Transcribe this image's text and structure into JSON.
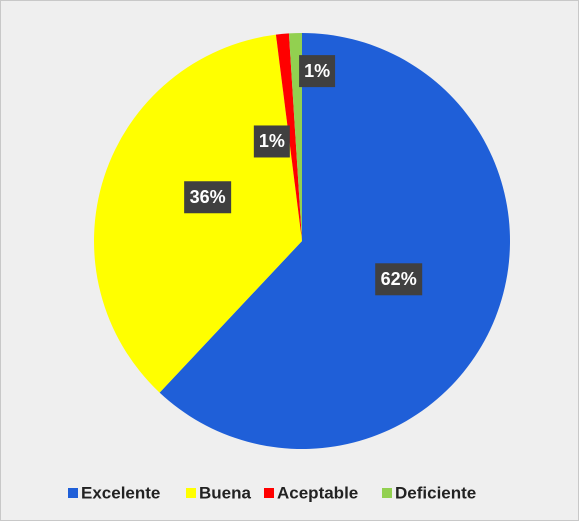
{
  "chart_data": {
    "type": "pie",
    "categories": [
      "Excelente",
      "Buena",
      "Aceptable",
      "Deficiente"
    ],
    "values": [
      62,
      36,
      1,
      1
    ],
    "value_labels": [
      "62%",
      "36%",
      "1%",
      "1%"
    ],
    "colors": [
      "#1f5fd8",
      "#ffff00",
      "#ff0000",
      "#92d050"
    ],
    "legend": "bottom"
  }
}
